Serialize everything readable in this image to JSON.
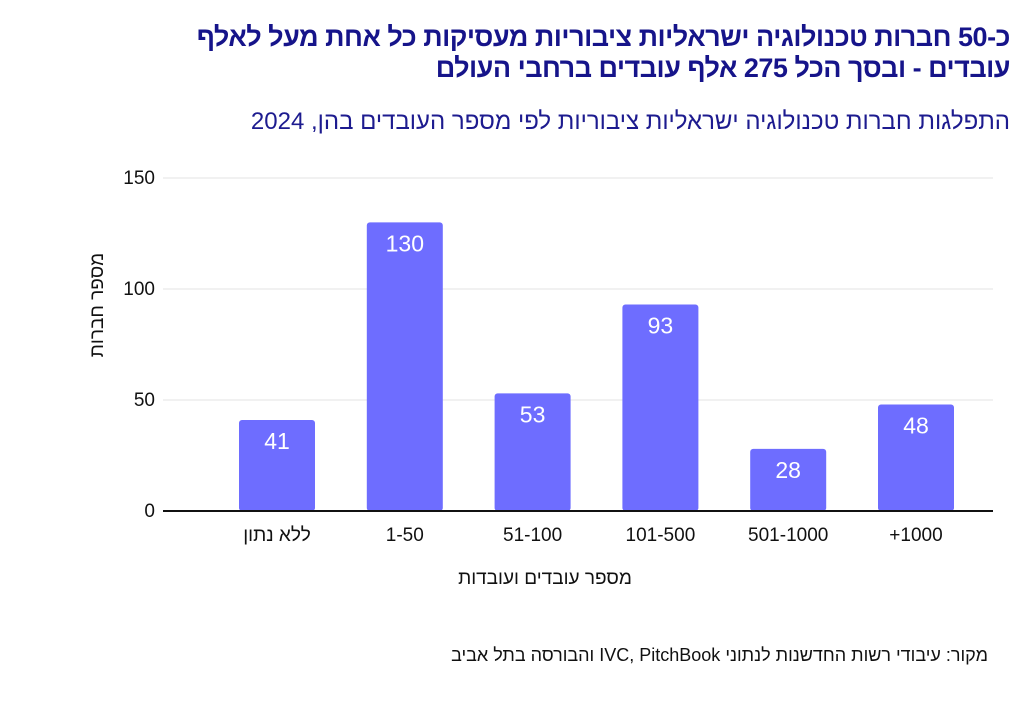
{
  "header": {
    "title_line1": "כ-50 חברות טכנולוגיה ישראליות ציבוריות מעסיקות כל אחת מעל לאלף",
    "title_line2": "עובדים - ובסך הכל 275 אלף עובדים ברחבי העולם",
    "subtitle": "התפלגות חברות טכנולוגיה ישראליות ציבוריות לפי מספר העובדים בהן, 2024"
  },
  "source": "מקור: עיבודי רשות החדשנות לנתוני IVC, PitchBook והבורסה בתל אביב",
  "colors": {
    "bar": "#6e6dff",
    "title": "#16148a",
    "grid": "#e3e3e3",
    "axis": "#111111"
  },
  "chart_data": {
    "type": "bar",
    "title": "התפלגות חברות טכנולוגיה ישראליות ציבוריות לפי מספר העובדים בהן, 2024",
    "xlabel": "מספר עובדים ועובדות",
    "ylabel": "מספר חברות",
    "categories": [
      "ללא נתון",
      "1-50",
      "51-100",
      "101-500",
      "501-1000",
      "1000+"
    ],
    "values": [
      41,
      130,
      53,
      93,
      28,
      48
    ],
    "ylim": [
      0,
      150
    ],
    "yticks": [
      0,
      50,
      100,
      150
    ],
    "grid": true
  }
}
